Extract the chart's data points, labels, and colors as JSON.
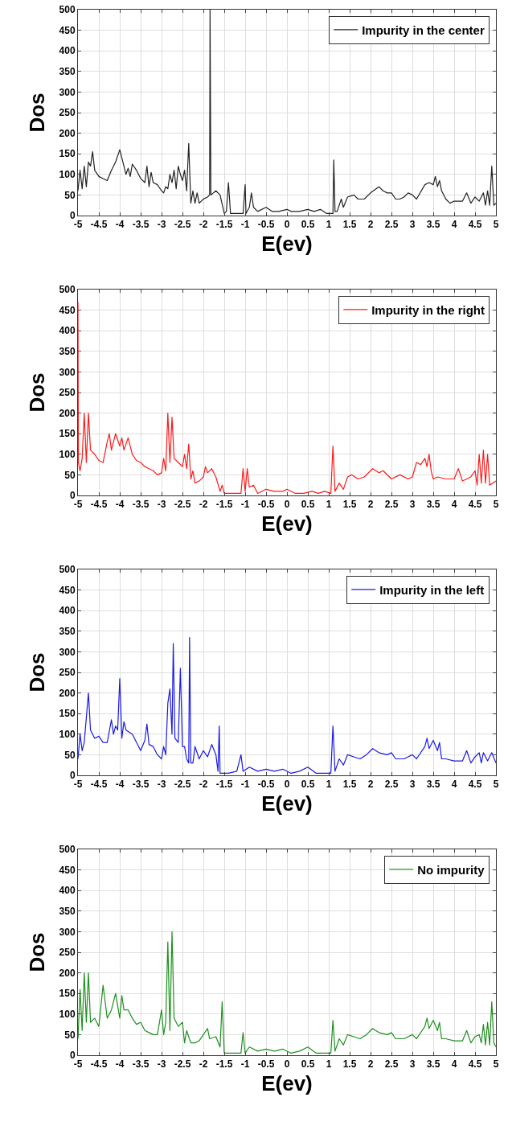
{
  "chart_data": [
    {
      "type": "line",
      "xlabel": "E(ev)",
      "ylabel": "Dos",
      "xlim": [
        -5,
        5
      ],
      "ylim": [
        0,
        500
      ],
      "xticks": [
        -5,
        -4.5,
        -4,
        -3.5,
        -3,
        -2.5,
        -2,
        -1.5,
        -1,
        -0.5,
        0,
        0.5,
        1,
        1.5,
        2,
        2.5,
        3,
        3.5,
        4,
        4.5,
        5
      ],
      "yticks": [
        0,
        50,
        100,
        150,
        200,
        250,
        300,
        350,
        400,
        450,
        500
      ],
      "grid": true,
      "legend": "top right",
      "marker": "none",
      "line_style": "solid",
      "x": [
        -5,
        -4.95,
        -4.9,
        -4.85,
        -4.8,
        -4.75,
        -4.7,
        -4.65,
        -4.6,
        -4.5,
        -4.4,
        -4.3,
        -4.2,
        -4.1,
        -4,
        -3.95,
        -3.9,
        -3.85,
        -3.8,
        -3.75,
        -3.7,
        -3.6,
        -3.5,
        -3.4,
        -3.35,
        -3.3,
        -3.25,
        -3.2,
        -3.1,
        -3,
        -2.95,
        -2.9,
        -2.85,
        -2.8,
        -2.75,
        -2.7,
        -2.65,
        -2.6,
        -2.55,
        -2.5,
        -2.45,
        -2.4,
        -2.35,
        -2.3,
        -2.25,
        -2.2,
        -2.15,
        -2.1,
        -2.05,
        -2,
        -1.9,
        -1.85,
        -1.84,
        -1.82,
        -1.7,
        -1.6,
        -1.5,
        -1.45,
        -1.4,
        -1.35,
        -1.2,
        -1.05,
        -1,
        -0.98,
        -0.9,
        -0.85,
        -0.8,
        -0.7,
        -0.5,
        -0.35,
        -0.2,
        0,
        0.1,
        0.3,
        0.5,
        0.65,
        0.8,
        0.95,
        1.05,
        1.1,
        1.12,
        1.15,
        1.2,
        1.3,
        1.35,
        1.45,
        1.6,
        1.7,
        1.85,
        2,
        2.2,
        2.3,
        2.4,
        2.5,
        2.6,
        2.7,
        2.8,
        2.9,
        3,
        3.1,
        3.3,
        3.4,
        3.5,
        3.55,
        3.6,
        3.65,
        3.7,
        3.8,
        3.9,
        4,
        4.2,
        4.3,
        4.4,
        4.5,
        4.6,
        4.7,
        4.75,
        4.8,
        4.85,
        4.9,
        4.95,
        5
      ],
      "series": [
        {
          "name": "Impurity in the center",
          "color": "#222222",
          "values": [
            60,
            110,
            65,
            120,
            70,
            130,
            120,
            155,
            110,
            95,
            90,
            85,
            110,
            130,
            160,
            140,
            120,
            100,
            115,
            95,
            125,
            110,
            90,
            80,
            120,
            70,
            105,
            80,
            75,
            60,
            55,
            70,
            65,
            100,
            80,
            110,
            65,
            120,
            100,
            85,
            110,
            60,
            175,
            30,
            60,
            30,
            55,
            30,
            35,
            40,
            45,
            50,
            500,
            50,
            60,
            50,
            5,
            10,
            80,
            5,
            5,
            5,
            75,
            5,
            20,
            55,
            20,
            10,
            20,
            10,
            10,
            15,
            10,
            10,
            15,
            10,
            15,
            5,
            5,
            5,
            135,
            10,
            10,
            40,
            20,
            45,
            50,
            40,
            40,
            55,
            70,
            60,
            55,
            55,
            40,
            40,
            45,
            55,
            50,
            40,
            75,
            80,
            75,
            95,
            70,
            85,
            60,
            40,
            30,
            35,
            35,
            55,
            30,
            45,
            35,
            55,
            25,
            60,
            25,
            120,
            25,
            30
          ]
        }
      ]
    },
    {
      "type": "line",
      "xlabel": "E(ev)",
      "ylabel": "Dos",
      "xlim": [
        -5,
        5
      ],
      "ylim": [
        0,
        500
      ],
      "xticks": [
        -5,
        -4.5,
        -4,
        -3.5,
        -3,
        -2.5,
        -2,
        -1.5,
        -1,
        -0.5,
        0,
        0.5,
        1,
        1.5,
        2,
        2.5,
        3,
        3.5,
        4,
        4.5,
        5
      ],
      "yticks": [
        0,
        50,
        100,
        150,
        200,
        250,
        300,
        350,
        400,
        450,
        500
      ],
      "grid": true,
      "legend": "top right",
      "marker": "none",
      "line_style": "solid",
      "x": [
        -5,
        -4.99,
        -4.95,
        -4.9,
        -4.85,
        -4.8,
        -4.75,
        -4.7,
        -4.6,
        -4.5,
        -4.4,
        -4.3,
        -4.25,
        -4.2,
        -4.1,
        -4,
        -3.95,
        -3.9,
        -3.8,
        -3.7,
        -3.6,
        -3.5,
        -3.4,
        -3.3,
        -3.2,
        -3.1,
        -3,
        -2.95,
        -2.9,
        -2.85,
        -2.8,
        -2.75,
        -2.7,
        -2.6,
        -2.5,
        -2.45,
        -2.4,
        -2.35,
        -2.3,
        -2.25,
        -2.2,
        -2.1,
        -2,
        -1.95,
        -1.9,
        -1.8,
        -1.7,
        -1.6,
        -1.55,
        -1.5,
        -1.1,
        -1.05,
        -1,
        -0.95,
        -0.9,
        -0.8,
        -0.7,
        -0.5,
        -0.3,
        -0.1,
        0,
        0.2,
        0.4,
        0.6,
        0.75,
        0.9,
        1.05,
        1.1,
        1.15,
        1.25,
        1.35,
        1.45,
        1.55,
        1.7,
        1.85,
        2.05,
        2.2,
        2.3,
        2.5,
        2.7,
        2.9,
        3,
        3.1,
        3.2,
        3.3,
        3.35,
        3.4,
        3.45,
        3.5,
        3.6,
        3.8,
        4,
        4.1,
        4.2,
        4.4,
        4.5,
        4.55,
        4.6,
        4.65,
        4.7,
        4.75,
        4.8,
        4.85,
        5
      ],
      "series": [
        {
          "name": "Impurity in the right",
          "color": "#ff1a1a",
          "values": [
            470,
            80,
            60,
            90,
            200,
            80,
            200,
            110,
            100,
            85,
            80,
            130,
            150,
            110,
            150,
            120,
            140,
            110,
            140,
            100,
            85,
            80,
            70,
            65,
            60,
            50,
            55,
            90,
            60,
            200,
            80,
            190,
            90,
            80,
            70,
            100,
            65,
            125,
            40,
            60,
            30,
            35,
            45,
            70,
            55,
            65,
            45,
            10,
            25,
            5,
            5,
            65,
            10,
            65,
            20,
            25,
            5,
            15,
            10,
            10,
            15,
            5,
            5,
            10,
            5,
            10,
            5,
            120,
            10,
            30,
            15,
            45,
            50,
            40,
            45,
            65,
            55,
            60,
            40,
            50,
            40,
            45,
            80,
            75,
            90,
            70,
            100,
            60,
            40,
            45,
            40,
            40,
            65,
            35,
            45,
            60,
            25,
            100,
            30,
            110,
            30,
            100,
            25,
            35
          ]
        }
      ]
    },
    {
      "type": "line",
      "xlabel": "E(ev)",
      "ylabel": "Dos",
      "xlim": [
        -5,
        5
      ],
      "ylim": [
        0,
        500
      ],
      "xticks": [
        -5,
        -4.5,
        -4,
        -3.5,
        -3,
        -2.5,
        -2,
        -1.5,
        -1,
        -0.5,
        0,
        0.5,
        1,
        1.5,
        2,
        2.5,
        3,
        3.5,
        4,
        4.5,
        5
      ],
      "yticks": [
        0,
        50,
        100,
        150,
        200,
        250,
        300,
        350,
        400,
        450,
        500
      ],
      "grid": true,
      "legend": "top right",
      "marker": "none",
      "line_style": "solid",
      "x": [
        -5,
        -4.95,
        -4.9,
        -4.85,
        -4.75,
        -4.7,
        -4.6,
        -4.5,
        -4.4,
        -4.3,
        -4.2,
        -4.15,
        -4.1,
        -4.05,
        -4,
        -3.95,
        -3.9,
        -3.85,
        -3.7,
        -3.6,
        -3.5,
        -3.4,
        -3.35,
        -3.3,
        -3.2,
        -3.1,
        -3,
        -2.95,
        -2.9,
        -2.85,
        -2.8,
        -2.75,
        -2.72,
        -2.68,
        -2.6,
        -2.55,
        -2.5,
        -2.45,
        -2.4,
        -2.35,
        -2.33,
        -2.3,
        -2.25,
        -2.2,
        -2.1,
        -2,
        -1.9,
        -1.8,
        -1.7,
        -1.65,
        -1.62,
        -1.6,
        -1.4,
        -1.2,
        -1.1,
        -1.05,
        -0.9,
        -0.7,
        -0.5,
        -0.3,
        -0.1,
        0.1,
        0.3,
        0.5,
        0.7,
        0.9,
        1.05,
        1.1,
        1.15,
        1.25,
        1.35,
        1.45,
        1.6,
        1.75,
        1.9,
        2.05,
        2.2,
        2.4,
        2.5,
        2.6,
        2.8,
        3,
        3.1,
        3.3,
        3.35,
        3.4,
        3.5,
        3.6,
        3.65,
        3.7,
        3.8,
        4,
        4.2,
        4.3,
        4.4,
        4.5,
        4.6,
        4.65,
        4.7,
        4.8,
        4.9,
        5
      ],
      "series": [
        {
          "name": "Impurity in the left",
          "color": "#1a1ae6",
          "values": [
            40,
            100,
            60,
            80,
            200,
            110,
            90,
            95,
            80,
            80,
            135,
            100,
            120,
            110,
            235,
            90,
            130,
            110,
            100,
            80,
            60,
            85,
            125,
            75,
            70,
            50,
            40,
            70,
            50,
            175,
            210,
            100,
            320,
            90,
            80,
            260,
            70,
            70,
            40,
            30,
            335,
            30,
            30,
            70,
            40,
            60,
            45,
            75,
            50,
            10,
            120,
            5,
            5,
            10,
            50,
            10,
            20,
            10,
            15,
            10,
            15,
            5,
            10,
            20,
            5,
            5,
            5,
            120,
            10,
            40,
            25,
            50,
            45,
            40,
            50,
            65,
            55,
            50,
            55,
            40,
            40,
            50,
            40,
            70,
            90,
            65,
            85,
            60,
            80,
            40,
            40,
            35,
            35,
            60,
            30,
            45,
            55,
            30,
            55,
            35,
            55,
            30
          ]
        }
      ]
    },
    {
      "type": "line",
      "xlabel": "E(ev)",
      "ylabel": "Dos",
      "xlim": [
        -5,
        5
      ],
      "ylim": [
        0,
        500
      ],
      "xticks": [
        -5,
        -4.5,
        -4,
        -3.5,
        -3,
        -2.5,
        -2,
        -1.5,
        -1,
        -0.5,
        0,
        0.5,
        1,
        1.5,
        2,
        2.5,
        3,
        3.5,
        4,
        4.5,
        5
      ],
      "yticks": [
        0,
        50,
        100,
        150,
        200,
        250,
        300,
        350,
        400,
        450,
        500
      ],
      "grid": true,
      "legend": "top right",
      "marker": "none",
      "line_style": "solid",
      "x": [
        -5,
        -4.95,
        -4.9,
        -4.85,
        -4.8,
        -4.75,
        -4.7,
        -4.6,
        -4.5,
        -4.4,
        -4.3,
        -4.2,
        -4.1,
        -4,
        -3.95,
        -3.9,
        -3.8,
        -3.7,
        -3.6,
        -3.5,
        -3.4,
        -3.3,
        -3.2,
        -3.1,
        -3,
        -2.95,
        -2.9,
        -2.85,
        -2.8,
        -2.75,
        -2.7,
        -2.6,
        -2.5,
        -2.45,
        -2.4,
        -2.3,
        -2.2,
        -2.1,
        -2,
        -1.9,
        -1.85,
        -1.7,
        -1.6,
        -1.55,
        -1.5,
        -1.3,
        -1.1,
        -1.05,
        -1,
        -0.9,
        -0.7,
        -0.5,
        -0.3,
        -0.1,
        0.1,
        0.3,
        0.5,
        0.7,
        0.9,
        1.05,
        1.1,
        1.15,
        1.25,
        1.35,
        1.45,
        1.6,
        1.75,
        1.9,
        2.05,
        2.2,
        2.4,
        2.5,
        2.6,
        2.8,
        3,
        3.1,
        3.3,
        3.35,
        3.4,
        3.5,
        3.6,
        3.65,
        3.7,
        3.8,
        4,
        4.2,
        4.3,
        4.4,
        4.5,
        4.6,
        4.65,
        4.7,
        4.75,
        4.8,
        4.85,
        4.9,
        4.95,
        5
      ],
      "series": [
        {
          "name": "No impurity",
          "color": "#1f8f1f",
          "values": [
            40,
            160,
            60,
            200,
            80,
            200,
            80,
            90,
            70,
            170,
            90,
            110,
            150,
            90,
            145,
            110,
            110,
            90,
            75,
            80,
            60,
            55,
            50,
            50,
            110,
            50,
            80,
            275,
            60,
            300,
            90,
            70,
            80,
            30,
            60,
            30,
            30,
            35,
            50,
            65,
            40,
            45,
            20,
            130,
            5,
            5,
            5,
            55,
            5,
            20,
            10,
            15,
            10,
            15,
            5,
            10,
            20,
            5,
            5,
            5,
            85,
            10,
            40,
            25,
            50,
            45,
            40,
            50,
            65,
            55,
            50,
            55,
            40,
            40,
            50,
            40,
            70,
            90,
            65,
            85,
            60,
            80,
            40,
            40,
            35,
            35,
            60,
            30,
            45,
            50,
            30,
            75,
            25,
            80,
            25,
            130,
            30,
            20
          ]
        }
      ]
    }
  ]
}
